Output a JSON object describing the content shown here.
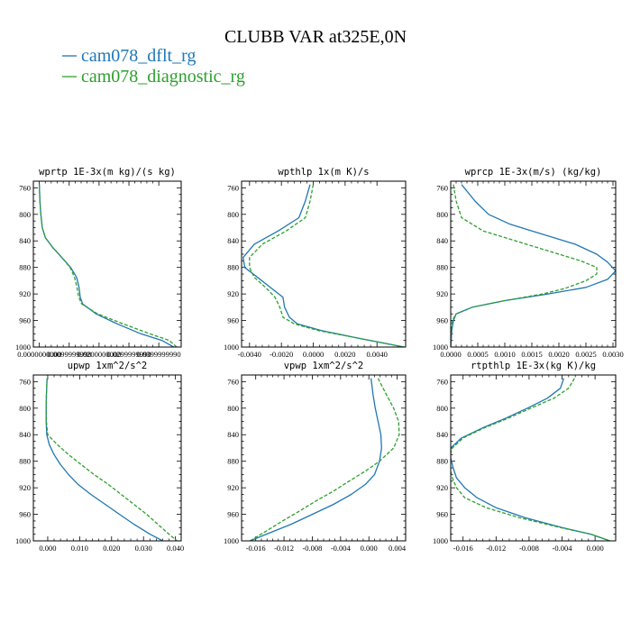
{
  "figure": {
    "title": "CLUBB VAR at325E,0N",
    "legend": [
      {
        "label": "cam078_dflt_rg",
        "color": "#1f77b4",
        "dash": "solid"
      },
      {
        "label": "cam078_diagnostic_rg",
        "color": "#2ca02c",
        "dash": "dashed"
      }
    ]
  },
  "chart_data": [
    {
      "type": "line",
      "title": "wprtp  1E-3x(m kg)/(s kg)",
      "xlim": [
        -0.002,
        0.0475
      ],
      "ylim": [
        750,
        1000
      ],
      "yticks": [
        760,
        800,
        840,
        880,
        920,
        960,
        1000
      ],
      "xticks": [
        {
          "value": 0.0,
          "label": "0.0000000000"
        },
        {
          "value": 0.01,
          "label": "0.0099999998"
        },
        {
          "value": 0.02,
          "label": "0.0200000000"
        },
        {
          "value": 0.03,
          "label": "0.0299999990"
        },
        {
          "value": 0.04,
          "label": "0.0399999990"
        }
      ],
      "series": [
        {
          "name": "cam078_dflt_rg",
          "y": [
            755,
            780,
            800,
            820,
            835,
            850,
            865,
            880,
            895,
            910,
            925,
            935,
            950,
            965,
            980,
            990,
            1000
          ],
          "x": [
            0.0,
            0.0002,
            0.0005,
            0.001,
            0.002,
            0.0045,
            0.0075,
            0.0105,
            0.0125,
            0.0133,
            0.0137,
            0.0145,
            0.019,
            0.026,
            0.034,
            0.041,
            0.045
          ]
        },
        {
          "name": "cam078_diagnostic_rg",
          "y": [
            755,
            780,
            800,
            820,
            835,
            850,
            865,
            880,
            895,
            910,
            925,
            935,
            950,
            965,
            980,
            990,
            1000
          ],
          "x": [
            0.0,
            0.0002,
            0.0005,
            0.001,
            0.002,
            0.0045,
            0.0075,
            0.0103,
            0.0118,
            0.0126,
            0.0132,
            0.0142,
            0.0195,
            0.028,
            0.037,
            0.0435,
            0.046
          ]
        }
      ]
    },
    {
      "type": "line",
      "title": "wpthlp  1x(m K)/s",
      "xlim": [
        -0.0045,
        0.0058
      ],
      "ylim": [
        750,
        1000
      ],
      "yticks": [
        760,
        800,
        840,
        880,
        920,
        960,
        1000
      ],
      "xticks": [
        {
          "value": -0.004,
          "label": "-0.0040"
        },
        {
          "value": -0.002,
          "label": "-0.0020"
        },
        {
          "value": 0.0,
          "label": "0.0000"
        },
        {
          "value": 0.002,
          "label": "0.0020"
        },
        {
          "value": 0.004,
          "label": "0.0040"
        }
      ],
      "series": [
        {
          "name": "cam078_dflt_rg",
          "y": [
            755,
            780,
            805,
            825,
            845,
            865,
            880,
            895,
            910,
            925,
            940,
            955,
            965,
            975,
            985,
            1000
          ],
          "x": [
            -0.0002,
            -0.0005,
            -0.0009,
            -0.0022,
            -0.0037,
            -0.0044,
            -0.0043,
            -0.0035,
            -0.0027,
            -0.0019,
            -0.0018,
            -0.0015,
            -0.001,
            0.0005,
            0.0025,
            0.0057
          ]
        },
        {
          "name": "cam078_diagnostic_rg",
          "y": [
            755,
            780,
            805,
            825,
            845,
            865,
            880,
            895,
            910,
            925,
            940,
            955,
            965,
            975,
            985,
            1000
          ],
          "x": [
            0.0,
            -0.0002,
            -0.0005,
            -0.0017,
            -0.0032,
            -0.004,
            -0.004,
            -0.0037,
            -0.003,
            -0.0024,
            -0.0021,
            -0.0019,
            -0.0012,
            0.0003,
            0.0025,
            0.0057
          ]
        }
      ]
    },
    {
      "type": "line",
      "title": "wprcp  1E-3x(m/s) (kg/kg)",
      "xlim": [
        0.0,
        0.00305
      ],
      "ylim": [
        750,
        1000
      ],
      "yticks": [
        760,
        800,
        840,
        880,
        920,
        960,
        1000
      ],
      "xticks": [
        {
          "value": 0.0,
          "label": "0.0000"
        },
        {
          "value": 0.0005,
          "label": "0.0005"
        },
        {
          "value": 0.001,
          "label": "0.0010"
        },
        {
          "value": 0.0015,
          "label": "0.0015"
        },
        {
          "value": 0.002,
          "label": "0.0020"
        },
        {
          "value": 0.0025,
          "label": "0.0025"
        },
        {
          "value": 0.003,
          "label": "0.0030"
        }
      ],
      "series": [
        {
          "name": "cam078_dflt_rg",
          "y": [
            755,
            780,
            800,
            815,
            830,
            845,
            860,
            872,
            885,
            898,
            910,
            920,
            930,
            940,
            950,
            960,
            975,
            1000
          ],
          "x": [
            0.0002,
            0.00045,
            0.0007,
            0.0011,
            0.0017,
            0.0023,
            0.0027,
            0.0029,
            0.00305,
            0.0029,
            0.0025,
            0.0018,
            0.001,
            0.0004,
            0.0001,
            5e-05,
            2e-05,
            0.0
          ]
        },
        {
          "name": "cam078_diagnostic_rg",
          "y": [
            755,
            780,
            805,
            825,
            840,
            855,
            870,
            880,
            890,
            900,
            912,
            920,
            930,
            940,
            950,
            960,
            975,
            1000
          ],
          "x": [
            5e-05,
            0.0001,
            0.0002,
            0.0006,
            0.0012,
            0.0018,
            0.0024,
            0.0027,
            0.0027,
            0.0025,
            0.0021,
            0.0017,
            0.001,
            0.0004,
            0.0001,
            3e-05,
            1e-05,
            0.0
          ]
        }
      ]
    },
    {
      "type": "line",
      "title": "upwp  1xm^2/s^2",
      "xlim": [
        -0.0045,
        0.0418
      ],
      "ylim": [
        750,
        1000
      ],
      "yticks": [
        760,
        800,
        840,
        880,
        920,
        960,
        1000
      ],
      "xticks": [
        {
          "value": 0.0,
          "label": "0.000"
        },
        {
          "value": 0.01,
          "label": "0.010"
        },
        {
          "value": 0.02,
          "label": "0.020"
        },
        {
          "value": 0.03,
          "label": "0.030"
        },
        {
          "value": 0.04,
          "label": "0.040"
        }
      ],
      "series": [
        {
          "name": "cam078_dflt_rg",
          "y": [
            755,
            780,
            800,
            820,
            840,
            855,
            870,
            885,
            900,
            915,
            930,
            945,
            960,
            975,
            990,
            1000
          ],
          "x": [
            -0.0002,
            -0.0004,
            -0.0005,
            -0.0005,
            -0.0003,
            0.0005,
            0.002,
            0.004,
            0.0065,
            0.0095,
            0.0135,
            0.018,
            0.0225,
            0.027,
            0.032,
            0.036
          ]
        },
        {
          "name": "cam078_diagnostic_rg",
          "y": [
            755,
            780,
            800,
            820,
            840,
            855,
            870,
            885,
            900,
            915,
            930,
            945,
            960,
            975,
            990,
            1000
          ],
          "x": [
            -0.0002,
            -0.0004,
            -0.0005,
            -0.0004,
            0.0,
            0.003,
            0.0065,
            0.0105,
            0.0145,
            0.019,
            0.023,
            0.027,
            0.031,
            0.0345,
            0.038,
            0.0405
          ]
        }
      ]
    },
    {
      "type": "line",
      "title": "vpwp  1xm^2/s^2",
      "xlim": [
        -0.018,
        0.0052
      ],
      "ylim": [
        750,
        1000
      ],
      "yticks": [
        760,
        800,
        840,
        880,
        920,
        960,
        1000
      ],
      "xticks": [
        {
          "value": -0.016,
          "label": "-0.016"
        },
        {
          "value": -0.012,
          "label": "-0.012"
        },
        {
          "value": -0.008,
          "label": "-0.008"
        },
        {
          "value": -0.004,
          "label": "-0.004"
        },
        {
          "value": 0.0,
          "label": "0.000"
        },
        {
          "value": 0.004,
          "label": "0.004"
        }
      ],
      "series": [
        {
          "name": "cam078_dflt_rg",
          "y": [
            755,
            780,
            800,
            820,
            840,
            860,
            880,
            900,
            915,
            930,
            945,
            960,
            975,
            990,
            1000
          ],
          "x": [
            0.0003,
            0.0006,
            0.0009,
            0.0013,
            0.0017,
            0.0018,
            0.0015,
            0.0008,
            -0.0005,
            -0.0025,
            -0.005,
            -0.008,
            -0.011,
            -0.0145,
            -0.0168
          ]
        },
        {
          "name": "cam078_diagnostic_rg",
          "y": [
            755,
            780,
            800,
            820,
            840,
            860,
            880,
            895,
            910,
            925,
            940,
            955,
            970,
            985,
            1000
          ],
          "x": [
            0.0013,
            0.0025,
            0.0035,
            0.0042,
            0.0043,
            0.0035,
            0.0015,
            -0.0005,
            -0.0028,
            -0.005,
            -0.0075,
            -0.0098,
            -0.0122,
            -0.0145,
            -0.0168
          ]
        }
      ]
    },
    {
      "type": "line",
      "title": "rtpthlp  1E-3x(kg K)/kg",
      "xlim": [
        -0.0175,
        0.0025
      ],
      "ylim": [
        750,
        1000
      ],
      "yticks": [
        760,
        800,
        840,
        880,
        920,
        960,
        1000
      ],
      "xticks": [
        {
          "value": -0.016,
          "label": "-0.016"
        },
        {
          "value": -0.012,
          "label": "-0.012"
        },
        {
          "value": -0.008,
          "label": "-0.008"
        },
        {
          "value": -0.004,
          "label": "-0.004"
        },
        {
          "value": 0.0,
          "label": "0.000"
        }
      ],
      "series": [
        {
          "name": "cam078_dflt_rg",
          "y": [
            755,
            770,
            785,
            800,
            815,
            830,
            845,
            860,
            875,
            890,
            905,
            920,
            935,
            950,
            965,
            980,
            990,
            1000
          ],
          "x": [
            -0.0038,
            -0.0042,
            -0.0058,
            -0.0082,
            -0.0108,
            -0.0137,
            -0.0162,
            -0.0175,
            -0.0175,
            -0.0172,
            -0.0168,
            -0.0158,
            -0.0143,
            -0.012,
            -0.0085,
            -0.004,
            -0.0005,
            0.0018
          ]
        },
        {
          "name": "cam078_diagnostic_rg",
          "y": [
            755,
            770,
            785,
            800,
            815,
            830,
            845,
            860,
            875,
            890,
            905,
            920,
            935,
            950,
            965,
            980,
            990,
            1000
          ],
          "x": [
            -0.0025,
            -0.0032,
            -0.005,
            -0.0078,
            -0.0105,
            -0.0135,
            -0.016,
            -0.0173,
            -0.0177,
            -0.0176,
            -0.0173,
            -0.0168,
            -0.0158,
            -0.0132,
            -0.0092,
            -0.0042,
            -0.0005,
            0.0018
          ]
        }
      ]
    }
  ]
}
